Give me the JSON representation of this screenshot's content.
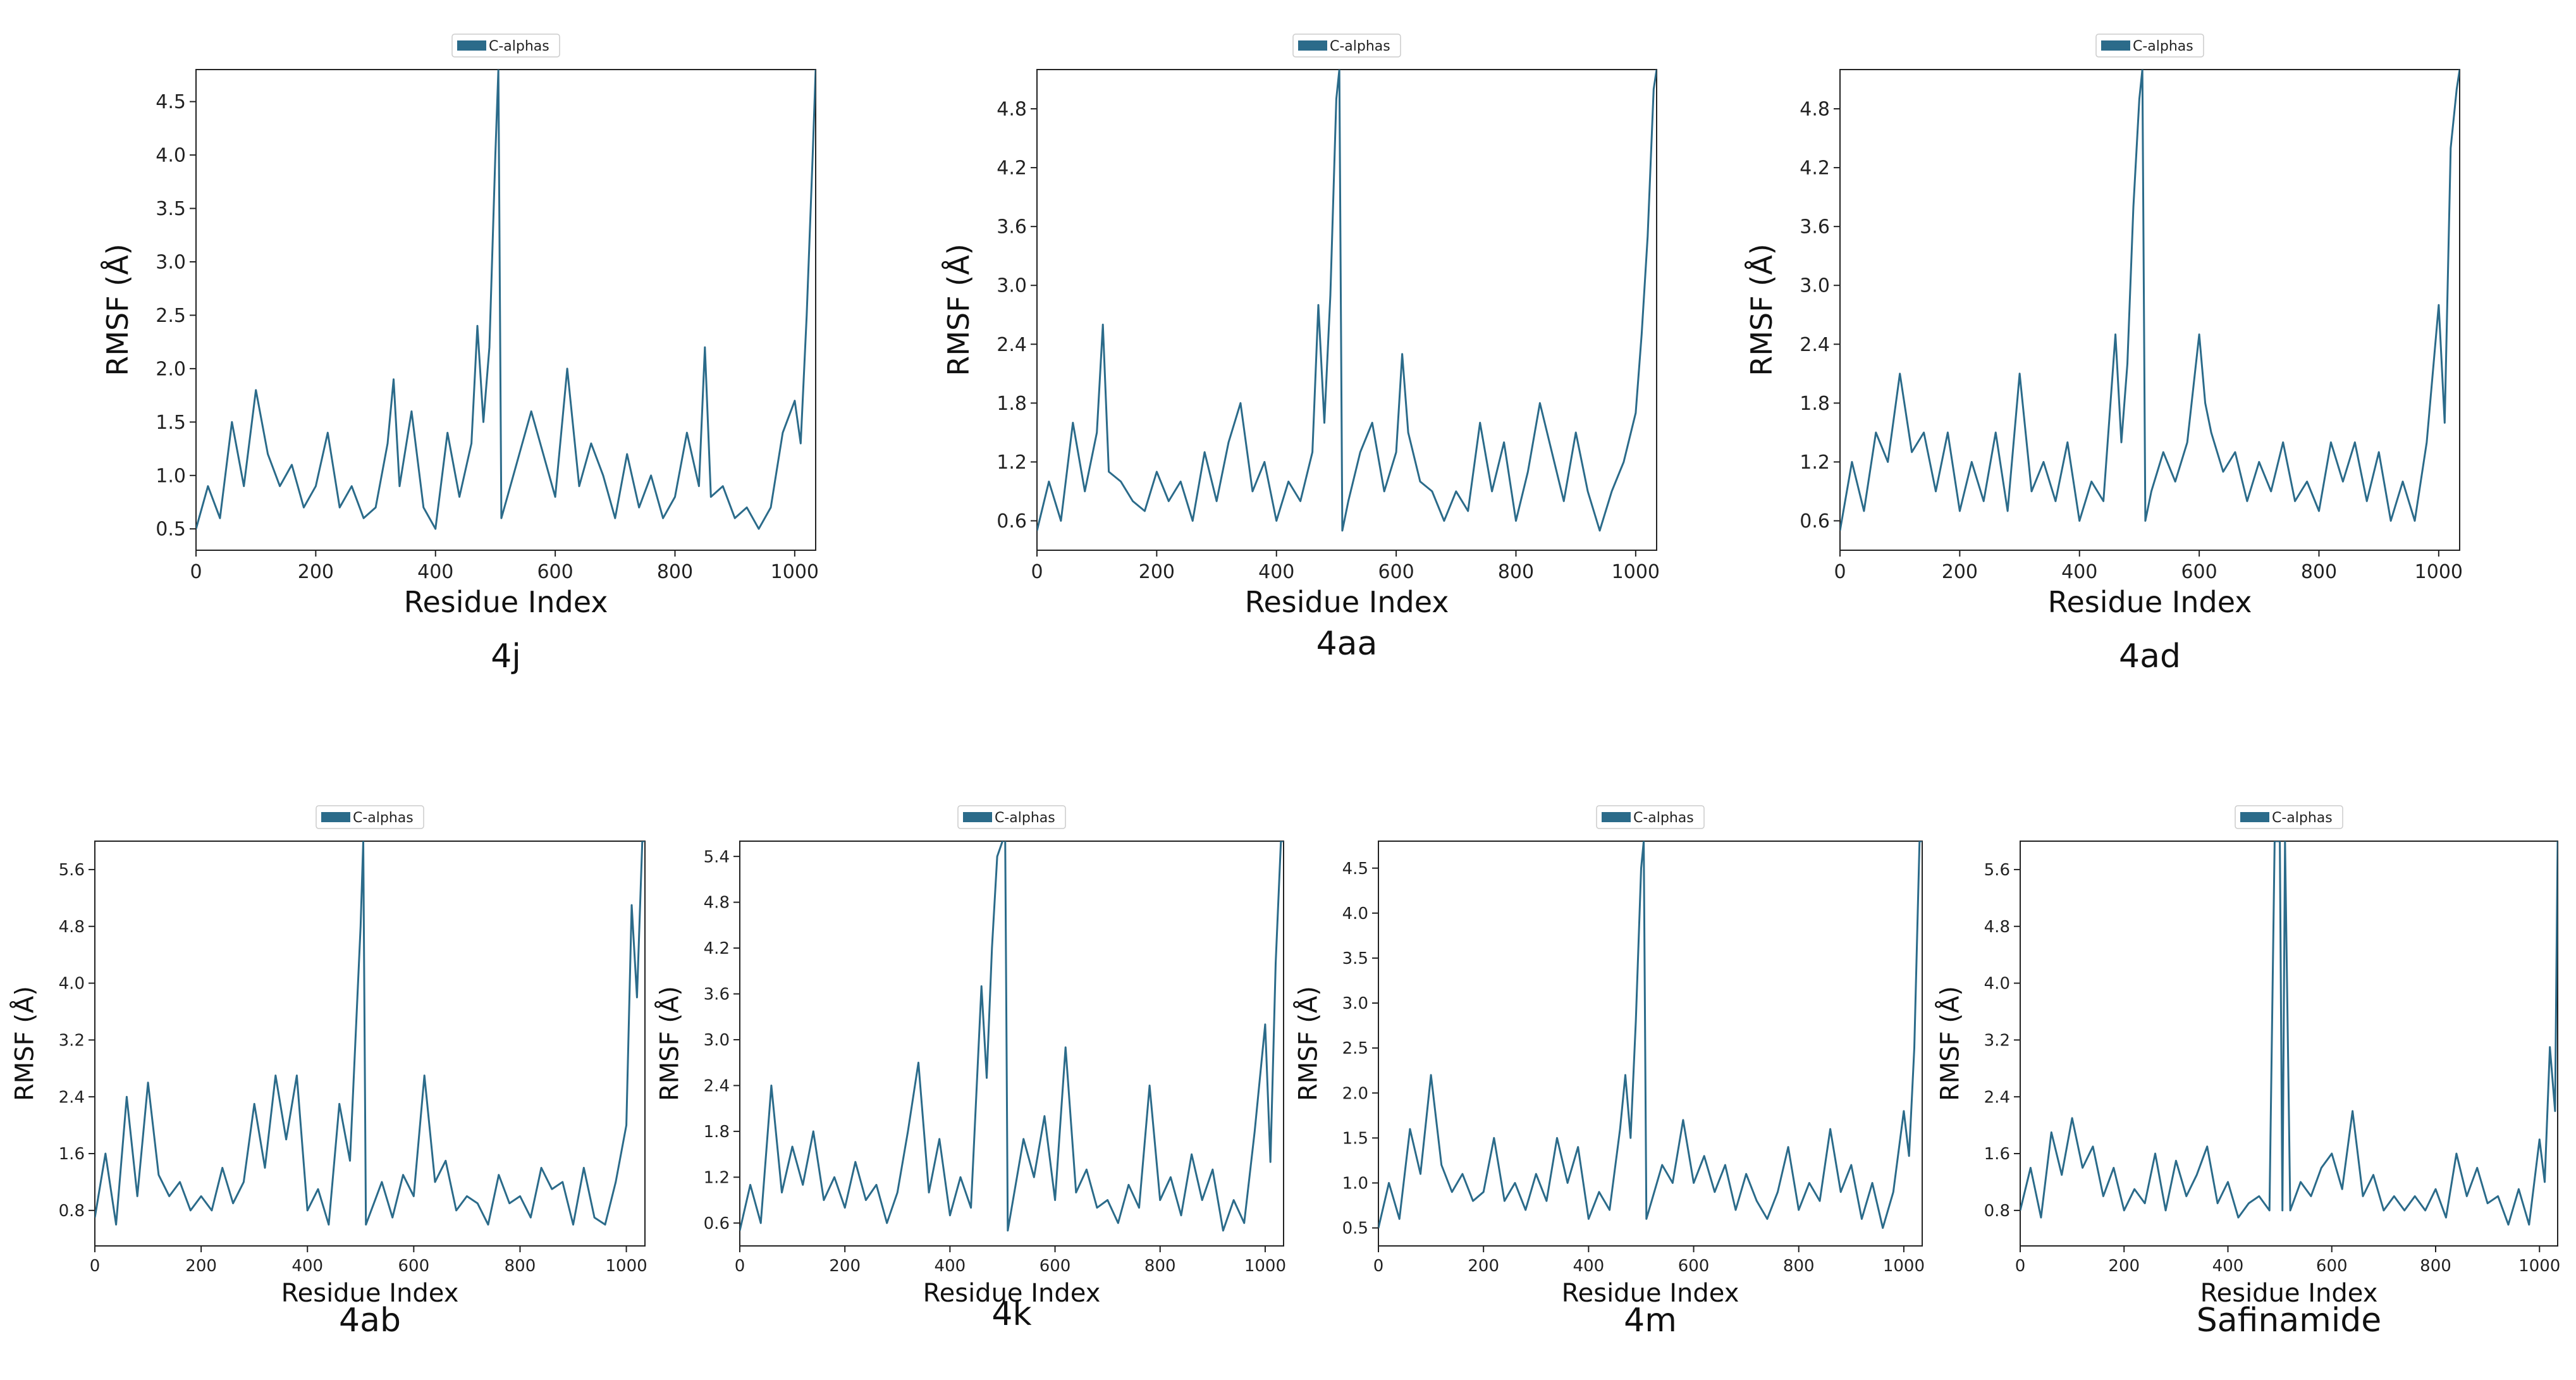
{
  "figure": {
    "series_color": "#2b6b8a",
    "legend_label": "C-alphas"
  },
  "chart_data": [
    {
      "type": "line",
      "caption": "4j",
      "title": "",
      "legend": [
        "C-alphas"
      ],
      "legend_position": "top",
      "xlabel": "Residue Index",
      "ylabel": "RMSF (Å)",
      "xlim": [
        0,
        1035
      ],
      "ylim": [
        0.3,
        4.8
      ],
      "xticks": [
        "0",
        "200",
        "400",
        "600",
        "800",
        "1000"
      ],
      "yticks": [
        "0.5",
        "1.0",
        "1.5",
        "2.0",
        "2.5",
        "3.0",
        "3.5",
        "4.0",
        "4.5"
      ],
      "x": [
        0,
        20,
        40,
        60,
        80,
        100,
        120,
        140,
        160,
        180,
        200,
        220,
        240,
        260,
        280,
        300,
        320,
        330,
        340,
        360,
        380,
        400,
        420,
        440,
        460,
        470,
        480,
        490,
        500,
        505,
        510,
        520,
        540,
        560,
        580,
        600,
        620,
        640,
        660,
        680,
        700,
        720,
        740,
        760,
        780,
        800,
        820,
        840,
        850,
        860,
        880,
        900,
        920,
        940,
        960,
        980,
        1000,
        1010,
        1020,
        1030,
        1035
      ],
      "y": [
        0.5,
        0.9,
        0.6,
        1.5,
        0.9,
        1.8,
        1.2,
        0.9,
        1.1,
        0.7,
        0.9,
        1.4,
        0.7,
        0.9,
        0.6,
        0.7,
        1.3,
        1.9,
        0.9,
        1.6,
        0.7,
        0.5,
        1.4,
        0.8,
        1.3,
        2.4,
        1.5,
        2.2,
        4.0,
        4.8,
        0.6,
        0.8,
        1.2,
        1.6,
        1.2,
        0.8,
        2.0,
        0.9,
        1.3,
        1.0,
        0.6,
        1.2,
        0.7,
        1.0,
        0.6,
        0.8,
        1.4,
        0.9,
        2.2,
        0.8,
        0.9,
        0.6,
        0.7,
        0.5,
        0.7,
        1.4,
        1.7,
        1.3,
        2.5,
        4.0,
        4.8
      ]
    },
    {
      "type": "line",
      "caption": "4aa",
      "title": "",
      "legend": [
        "C-alphas"
      ],
      "legend_position": "top",
      "xlabel": "Residue Index",
      "ylabel": "RMSF (Å)",
      "xlim": [
        0,
        1035
      ],
      "ylim": [
        0.3,
        5.2
      ],
      "xticks": [
        "0",
        "200",
        "400",
        "600",
        "800",
        "1000"
      ],
      "yticks": [
        "0.6",
        "1.2",
        "1.8",
        "2.4",
        "3.0",
        "3.6",
        "4.2",
        "4.8"
      ],
      "x": [
        0,
        20,
        40,
        60,
        80,
        100,
        110,
        120,
        140,
        160,
        180,
        200,
        220,
        240,
        260,
        280,
        300,
        320,
        340,
        360,
        380,
        400,
        420,
        440,
        460,
        470,
        480,
        490,
        500,
        505,
        510,
        520,
        540,
        560,
        580,
        600,
        610,
        620,
        640,
        660,
        680,
        700,
        720,
        740,
        760,
        780,
        800,
        820,
        840,
        860,
        880,
        900,
        920,
        940,
        960,
        980,
        1000,
        1010,
        1020,
        1030,
        1035
      ],
      "y": [
        0.5,
        1.0,
        0.6,
        1.6,
        0.9,
        1.5,
        2.6,
        1.1,
        1.0,
        0.8,
        0.7,
        1.1,
        0.8,
        1.0,
        0.6,
        1.3,
        0.8,
        1.4,
        1.8,
        0.9,
        1.2,
        0.6,
        1.0,
        0.8,
        1.3,
        2.8,
        1.6,
        2.9,
        4.9,
        5.2,
        0.5,
        0.8,
        1.3,
        1.6,
        0.9,
        1.3,
        2.3,
        1.5,
        1.0,
        0.9,
        0.6,
        0.9,
        0.7,
        1.6,
        0.9,
        1.4,
        0.6,
        1.1,
        1.8,
        1.3,
        0.8,
        1.5,
        0.9,
        0.5,
        0.9,
        1.2,
        1.7,
        2.5,
        3.5,
        5.0,
        5.2
      ]
    },
    {
      "type": "line",
      "caption": "4ad",
      "title": "",
      "legend": [
        "C-alphas"
      ],
      "legend_position": "top",
      "xlabel": "Residue Index",
      "ylabel": "RMSF (Å)",
      "xlim": [
        0,
        1035
      ],
      "ylim": [
        0.3,
        5.2
      ],
      "xticks": [
        "0",
        "200",
        "400",
        "600",
        "800",
        "1000"
      ],
      "yticks": [
        "0.6",
        "1.2",
        "1.8",
        "2.4",
        "3.0",
        "3.6",
        "4.2",
        "4.8"
      ],
      "x": [
        0,
        20,
        40,
        60,
        80,
        100,
        120,
        140,
        160,
        180,
        200,
        220,
        240,
        260,
        280,
        300,
        320,
        340,
        360,
        380,
        400,
        420,
        440,
        460,
        470,
        480,
        490,
        500,
        505,
        510,
        520,
        540,
        560,
        580,
        600,
        610,
        620,
        640,
        660,
        680,
        700,
        720,
        740,
        760,
        780,
        800,
        820,
        840,
        860,
        880,
        900,
        920,
        940,
        960,
        980,
        1000,
        1010,
        1020,
        1030,
        1035
      ],
      "y": [
        0.5,
        1.2,
        0.7,
        1.5,
        1.2,
        2.1,
        1.3,
        1.5,
        0.9,
        1.5,
        0.7,
        1.2,
        0.8,
        1.5,
        0.7,
        2.1,
        0.9,
        1.2,
        0.8,
        1.4,
        0.6,
        1.0,
        0.8,
        2.5,
        1.4,
        2.2,
        3.8,
        4.9,
        5.2,
        0.6,
        0.9,
        1.3,
        1.0,
        1.4,
        2.5,
        1.8,
        1.5,
        1.1,
        1.3,
        0.8,
        1.2,
        0.9,
        1.4,
        0.8,
        1.0,
        0.7,
        1.4,
        1.0,
        1.4,
        0.8,
        1.3,
        0.6,
        1.0,
        0.6,
        1.4,
        2.8,
        1.6,
        4.4,
        5.0,
        5.2
      ]
    },
    {
      "type": "line",
      "caption": "4ab",
      "title": "",
      "legend": [
        "C-alphas"
      ],
      "legend_position": "top",
      "xlabel": "Residue Index",
      "ylabel": "RMSF (Å)",
      "xlim": [
        0,
        1035
      ],
      "ylim": [
        0.3,
        6.0
      ],
      "xticks": [
        "0",
        "200",
        "400",
        "600",
        "800",
        "1000"
      ],
      "yticks": [
        "0.8",
        "1.6",
        "2.4",
        "3.2",
        "4.0",
        "4.8",
        "5.6"
      ],
      "x": [
        0,
        20,
        40,
        60,
        80,
        100,
        120,
        140,
        160,
        180,
        200,
        220,
        240,
        260,
        280,
        300,
        320,
        340,
        360,
        380,
        400,
        420,
        440,
        460,
        480,
        500,
        505,
        510,
        520,
        540,
        560,
        580,
        600,
        620,
        640,
        660,
        680,
        700,
        720,
        740,
        760,
        780,
        800,
        820,
        840,
        860,
        880,
        900,
        920,
        940,
        960,
        980,
        1000,
        1010,
        1020,
        1030,
        1035
      ],
      "y": [
        0.7,
        1.6,
        0.6,
        2.4,
        1.0,
        2.6,
        1.3,
        1.0,
        1.2,
        0.8,
        1.0,
        0.8,
        1.4,
        0.9,
        1.2,
        2.3,
        1.4,
        2.7,
        1.8,
        2.7,
        0.8,
        1.1,
        0.6,
        2.3,
        1.5,
        4.8,
        6.0,
        0.6,
        0.8,
        1.2,
        0.7,
        1.3,
        1.0,
        2.7,
        1.2,
        1.5,
        0.8,
        1.0,
        0.9,
        0.6,
        1.3,
        0.9,
        1.0,
        0.7,
        1.4,
        1.1,
        1.2,
        0.6,
        1.4,
        0.7,
        0.6,
        1.2,
        2.0,
        5.1,
        3.8,
        6.0,
        6.0
      ]
    },
    {
      "type": "line",
      "caption": "4k",
      "title": "",
      "legend": [
        "C-alphas"
      ],
      "legend_position": "top",
      "xlabel": "Residue Index",
      "ylabel": "RMSF (Å)",
      "xlim": [
        0,
        1035
      ],
      "ylim": [
        0.3,
        5.6
      ],
      "xticks": [
        "0",
        "200",
        "400",
        "600",
        "800",
        "1000"
      ],
      "yticks": [
        "0.6",
        "1.2",
        "1.8",
        "2.4",
        "3.0",
        "3.6",
        "4.2",
        "4.8",
        "5.4"
      ],
      "x": [
        0,
        20,
        40,
        60,
        80,
        100,
        120,
        140,
        160,
        180,
        200,
        220,
        240,
        260,
        280,
        300,
        320,
        340,
        360,
        380,
        400,
        420,
        440,
        460,
        470,
        480,
        490,
        500,
        505,
        510,
        520,
        540,
        560,
        580,
        600,
        620,
        640,
        660,
        680,
        700,
        720,
        740,
        760,
        780,
        800,
        820,
        840,
        860,
        880,
        900,
        920,
        940,
        960,
        980,
        1000,
        1010,
        1020,
        1030,
        1035
      ],
      "y": [
        0.5,
        1.1,
        0.6,
        2.4,
        1.0,
        1.6,
        1.1,
        1.8,
        0.9,
        1.2,
        0.8,
        1.4,
        0.9,
        1.1,
        0.6,
        1.0,
        1.8,
        2.7,
        1.0,
        1.7,
        0.7,
        1.2,
        0.8,
        3.7,
        2.5,
        4.2,
        5.4,
        5.6,
        5.8,
        0.5,
        0.9,
        1.7,
        1.2,
        2.0,
        0.9,
        2.9,
        1.0,
        1.3,
        0.8,
        0.9,
        0.6,
        1.1,
        0.8,
        2.4,
        0.9,
        1.2,
        0.7,
        1.5,
        0.9,
        1.3,
        0.5,
        0.9,
        0.6,
        1.8,
        3.2,
        1.4,
        4.0,
        5.6,
        5.6
      ]
    },
    {
      "type": "line",
      "caption": "4m",
      "title": "",
      "legend": [
        "C-alphas"
      ],
      "legend_position": "top",
      "xlabel": "Residue Index",
      "ylabel": "RMSF (Å)",
      "xlim": [
        0,
        1035
      ],
      "ylim": [
        0.3,
        4.8
      ],
      "xticks": [
        "0",
        "200",
        "400",
        "600",
        "800",
        "1000"
      ],
      "yticks": [
        "0.5",
        "1.0",
        "1.5",
        "2.0",
        "2.5",
        "3.0",
        "3.5",
        "4.0",
        "4.5"
      ],
      "x": [
        0,
        20,
        40,
        60,
        80,
        100,
        120,
        140,
        160,
        180,
        200,
        220,
        240,
        260,
        280,
        300,
        320,
        340,
        360,
        380,
        400,
        420,
        440,
        460,
        470,
        480,
        490,
        500,
        505,
        510,
        520,
        540,
        560,
        580,
        600,
        620,
        640,
        660,
        680,
        700,
        720,
        740,
        760,
        780,
        800,
        820,
        840,
        860,
        880,
        900,
        920,
        940,
        960,
        980,
        1000,
        1010,
        1020,
        1030,
        1035
      ],
      "y": [
        0.5,
        1.0,
        0.6,
        1.6,
        1.1,
        2.2,
        1.2,
        0.9,
        1.1,
        0.8,
        0.9,
        1.5,
        0.8,
        1.0,
        0.7,
        1.1,
        0.8,
        1.5,
        1.0,
        1.4,
        0.6,
        0.9,
        0.7,
        1.6,
        2.2,
        1.5,
        2.8,
        4.5,
        4.8,
        0.6,
        0.8,
        1.2,
        1.0,
        1.7,
        1.0,
        1.3,
        0.9,
        1.2,
        0.7,
        1.1,
        0.8,
        0.6,
        0.9,
        1.4,
        0.7,
        1.0,
        0.8,
        1.6,
        0.9,
        1.2,
        0.6,
        1.0,
        0.5,
        0.9,
        1.8,
        1.3,
        2.5,
        4.8,
        4.8
      ]
    },
    {
      "type": "line",
      "caption": "Safinamide",
      "title": "",
      "legend": [
        "C-alphas"
      ],
      "legend_position": "top",
      "xlabel": "Residue Index",
      "ylabel": "RMSF (Å)",
      "xlim": [
        0,
        1035
      ],
      "ylim": [
        0.3,
        6.0
      ],
      "xticks": [
        "0",
        "200",
        "400",
        "600",
        "800",
        "1000"
      ],
      "yticks": [
        "0.8",
        "1.6",
        "2.4",
        "3.2",
        "4.0",
        "4.8",
        "5.6"
      ],
      "x": [
        0,
        20,
        40,
        60,
        80,
        100,
        120,
        140,
        160,
        180,
        200,
        220,
        240,
        260,
        280,
        300,
        320,
        340,
        360,
        380,
        400,
        420,
        440,
        460,
        480,
        490,
        500,
        505,
        510,
        520,
        540,
        560,
        580,
        600,
        620,
        640,
        660,
        680,
        700,
        720,
        740,
        760,
        780,
        800,
        820,
        840,
        860,
        880,
        900,
        920,
        940,
        960,
        980,
        1000,
        1010,
        1020,
        1030,
        1035
      ],
      "y": [
        0.8,
        1.4,
        0.7,
        1.9,
        1.3,
        2.1,
        1.4,
        1.7,
        1.0,
        1.4,
        0.8,
        1.1,
        0.9,
        1.6,
        0.8,
        1.5,
        1.0,
        1.3,
        1.7,
        0.9,
        1.2,
        0.7,
        0.9,
        1.0,
        0.8,
        6.0,
        6.0,
        0.8,
        6.0,
        0.8,
        1.2,
        1.0,
        1.4,
        1.6,
        1.1,
        2.2,
        1.0,
        1.3,
        0.8,
        1.0,
        0.8,
        1.0,
        0.8,
        1.1,
        0.7,
        1.6,
        1.0,
        1.4,
        0.9,
        1.0,
        0.6,
        1.1,
        0.6,
        1.8,
        1.2,
        3.1,
        2.2,
        6.0
      ]
    }
  ]
}
